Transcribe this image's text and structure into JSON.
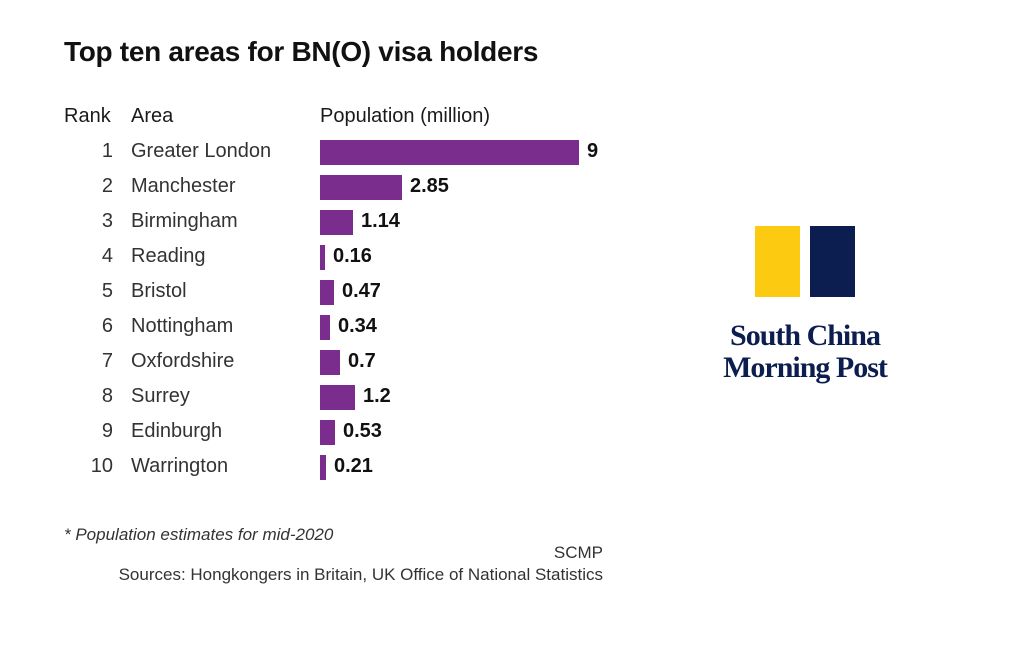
{
  "chart_data": {
    "type": "bar",
    "orientation": "horizontal",
    "title": "Top ten areas for BN(O) visa holders",
    "columns": [
      "Rank",
      "Area",
      "Population (million)"
    ],
    "ranks": [
      "1",
      "2",
      "3",
      "4",
      "5",
      "6",
      "7",
      "8",
      "9",
      "10"
    ],
    "categories": [
      "Greater London",
      "Manchester",
      "Birmingham",
      "Reading",
      "Bristol",
      "Nottingham",
      "Oxfordshire",
      "Surrey",
      "Edinburgh",
      "Warrington"
    ],
    "values": [
      9,
      2.85,
      1.14,
      0.16,
      0.47,
      0.34,
      0.7,
      1.2,
      0.53,
      0.21
    ],
    "value_labels": [
      "9",
      "2.85",
      "1.14",
      "0.16",
      "0.47",
      "0.34",
      "0.7",
      "1.2",
      "0.53",
      "0.21"
    ],
    "xlim": [
      0,
      9
    ],
    "grid": false,
    "bar_color": "#7b2d8e"
  },
  "footer": {
    "note": "* Population estimates for mid-2020",
    "credit": "SCMP",
    "sources": "Sources: Hongkongers in Britain, UK Office of National Statistics"
  },
  "logo": {
    "text_line1": "South China",
    "text_line2": "Morning Post",
    "yellow": "#fccb11",
    "navy": "#0c1d4f"
  }
}
